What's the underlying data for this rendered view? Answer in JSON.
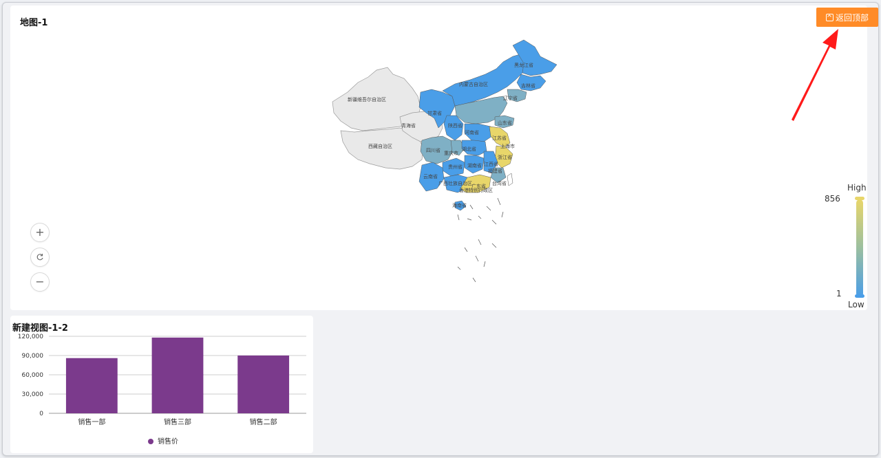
{
  "map_panel": {
    "title": "地图-1",
    "back_to_top_label": "返回顶部",
    "legend": {
      "high_label": "High",
      "low_label": "Low",
      "max_value": "856",
      "min_value": "1"
    },
    "zoom_in_icon": "plus-icon",
    "reset_icon": "refresh-icon",
    "zoom_out_icon": "minus-icon",
    "region_labels": {
      "xinjiang": "新疆维吾尔自治区",
      "xizang": "西藏自治区",
      "qinghai": "青海省",
      "gansu": "甘肃省",
      "neimenggu": "内蒙古自治区",
      "heilongjiang": "黑龙江省",
      "jilin": "吉林省",
      "liaoning": "辽宁省",
      "sichuan": "四川省",
      "yunnan": "云南省",
      "guizhou": "贵州省",
      "guangxi": "广西壮族自治区",
      "guangdong": "广东省",
      "hainan": "海南省",
      "hubei": "湖北省",
      "hunan": "湖南省",
      "henan": "河南省",
      "shandong": "山东省",
      "jiangsu": "江苏省",
      "zhejiang": "浙江省",
      "fujian": "福建省",
      "jiangxi": "江西省",
      "shanghai": "上海市",
      "taiwan": "台湾省",
      "chongqing": "重庆市",
      "shaanxi": "陕西省",
      "hongkong": "香港特别行政区"
    },
    "colors": {
      "high": "#e8d66a",
      "mid": "#7fb0c5",
      "low": "#4a9ee8",
      "no_data": "#e9e9e9",
      "button": "#ff8b27"
    }
  },
  "chart_panel": {
    "title": "新建视图-1-2"
  },
  "chart_data": {
    "type": "bar",
    "title": "新建视图-1-2",
    "categories": [
      "销售一部",
      "销售三部",
      "销售二部"
    ],
    "series": [
      {
        "name": "销售价",
        "values": [
          86000,
          118000,
          90000
        ],
        "color": "#7b3a8c"
      }
    ],
    "ylim": [
      0,
      120000
    ],
    "yticks": [
      "0",
      "30,000",
      "60,000",
      "90,000",
      "120,000"
    ],
    "ytick_values": [
      0,
      30000,
      60000,
      90000,
      120000
    ],
    "grid": true,
    "legend_position": "bottom"
  }
}
